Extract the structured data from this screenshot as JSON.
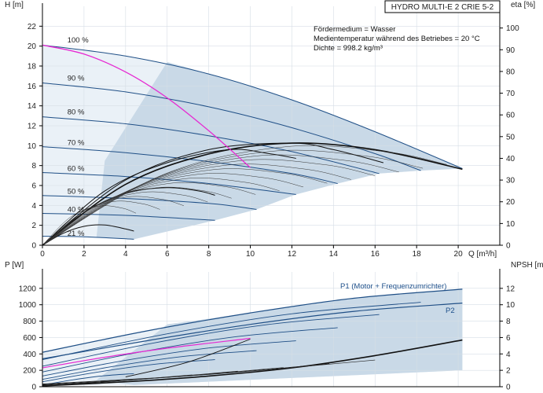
{
  "header": {
    "model": "HYDRO MULTI-E 2 CRIE 5-2",
    "medium": "Fördermedium = Wasser",
    "temperature": "Medientemperatur während des Betriebes = 20 °C",
    "density": "Dichte = 998.2 kg/m³"
  },
  "colors": {
    "area": "#c9d9e7",
    "area_light": "#eaf1f7",
    "curve_blue": "#1f4f86",
    "curve_black": "#111111",
    "curve_magenta": "#e62ad2",
    "axis": "#000000",
    "grid": "#d6dee6"
  },
  "chart_data": [
    {
      "type": "line",
      "title": "HYDRO MULTI-E 2 CRIE 5-2",
      "xlabel": "Q [m³/h]",
      "ylabel": "H [m]",
      "y2label": "eta [%]",
      "xlim": [
        0,
        22
      ],
      "ylim": [
        0,
        24
      ],
      "y2lim": [
        0,
        110
      ],
      "xticks": [
        0,
        2,
        4,
        6,
        8,
        10,
        12,
        14,
        16,
        18,
        20
      ],
      "yticks": [
        0,
        2,
        4,
        6,
        8,
        10,
        12,
        14,
        16,
        18,
        20,
        22
      ],
      "y2ticks": [
        0,
        10,
        20,
        30,
        40,
        50,
        60,
        70,
        80,
        90,
        100
      ],
      "grid": true,
      "speed_labels": [
        {
          "text": "100 %",
          "q": 1.2,
          "h": 20.2
        },
        {
          "text": "90 %",
          "q": 1.2,
          "h": 16.4
        },
        {
          "text": "80 %",
          "q": 1.2,
          "h": 13.0
        },
        {
          "text": "70 %",
          "q": 1.2,
          "h": 9.9
        },
        {
          "text": "60 %",
          "q": 1.2,
          "h": 7.3
        },
        {
          "text": "50 %",
          "q": 1.2,
          "h": 5.0
        },
        {
          "text": "40 %",
          "q": 1.2,
          "h": 3.2
        },
        {
          "text": "21 %",
          "q": 1.2,
          "h": 0.8
        }
      ],
      "series": [
        {
          "name": "100 %",
          "x": [
            0,
            4,
            8,
            12,
            16,
            20.2
          ],
          "y": [
            20.1,
            19.0,
            17.2,
            14.6,
            11.4,
            7.7
          ]
        },
        {
          "name": "90 %",
          "x": [
            0,
            4,
            8,
            12,
            16,
            18.2
          ],
          "y": [
            16.3,
            15.4,
            13.9,
            11.8,
            9.2,
            7.5
          ]
        },
        {
          "name": "80 %",
          "x": [
            0,
            4,
            8,
            12,
            16.2
          ],
          "y": [
            12.9,
            12.2,
            11.0,
            9.4,
            7.2
          ]
        },
        {
          "name": "70 %",
          "x": [
            0,
            4,
            8,
            12,
            14.2
          ],
          "y": [
            9.9,
            9.3,
            8.4,
            7.2,
            6.2
          ]
        },
        {
          "name": "60 %",
          "x": [
            0,
            4,
            8,
            12.2
          ],
          "y": [
            7.3,
            6.9,
            6.2,
            5.1
          ]
        },
        {
          "name": "50 %",
          "x": [
            0,
            4,
            8,
            10.3
          ],
          "y": [
            5.0,
            4.7,
            4.2,
            3.6
          ]
        },
        {
          "name": "40 %",
          "x": [
            0,
            4,
            8.3
          ],
          "y": [
            3.2,
            3.0,
            2.5
          ]
        },
        {
          "name": "21 %",
          "x": [
            0,
            2,
            4.4
          ],
          "y": [
            0.9,
            0.85,
            0.6
          ]
        }
      ],
      "eta_curves": [
        {
          "x": [
            0,
            1,
            2,
            3,
            4,
            4.4
          ],
          "y": [
            0,
            5.5,
            8.7,
            9.3,
            7.5,
            6.5
          ]
        },
        {
          "x": [
            0,
            2,
            4,
            6,
            7.5,
            8.3
          ],
          "y": [
            0,
            15,
            24,
            26.5,
            25,
            23
          ]
        },
        {
          "x": [
            0,
            3,
            6,
            9,
            11,
            12.2
          ],
          "y": [
            0,
            25,
            38,
            44,
            42,
            40
          ]
        },
        {
          "x": [
            0,
            4,
            8,
            12,
            14,
            16.4
          ],
          "y": [
            0,
            30,
            44,
            47,
            44,
            38
          ]
        },
        {
          "x": [
            0,
            4,
            8,
            12,
            16,
            20.2
          ],
          "y": [
            0,
            28,
            42,
            47,
            44,
            35
          ]
        }
      ],
      "magenta_curve": {
        "x": [
          0,
          2,
          4,
          6,
          8,
          10
        ],
        "y": [
          20.1,
          19.2,
          17.4,
          14.8,
          11.5,
          7.8
        ]
      }
    },
    {
      "type": "line",
      "xlabel": "Q [m³/h]",
      "ylabel": "P [W]",
      "y2label": "NPSH [m]",
      "xlim": [
        0,
        22
      ],
      "ylim": [
        0,
        1400
      ],
      "y2lim": [
        0,
        14
      ],
      "yticks": [
        0,
        200,
        400,
        600,
        800,
        1000,
        1200
      ],
      "y2ticks": [
        0,
        2,
        4,
        6,
        8,
        10,
        12
      ],
      "grid": true,
      "series": [
        {
          "name": "P1 (Motor + Frequenzumrichter)",
          "x": [
            0,
            5,
            10,
            15,
            20.2
          ],
          "y": [
            420,
            680,
            900,
            1080,
            1190
          ]
        },
        {
          "name": "P2",
          "x": [
            0,
            5,
            10,
            15,
            20.2
          ],
          "y": [
            340,
            560,
            760,
            920,
            1020
          ]
        }
      ],
      "npsh_curve": {
        "x": [
          0,
          4,
          8,
          12,
          16,
          20.2
        ],
        "y": [
          0.1,
          0.6,
          1.3,
          2.3,
          3.8,
          5.7
        ]
      }
    }
  ]
}
